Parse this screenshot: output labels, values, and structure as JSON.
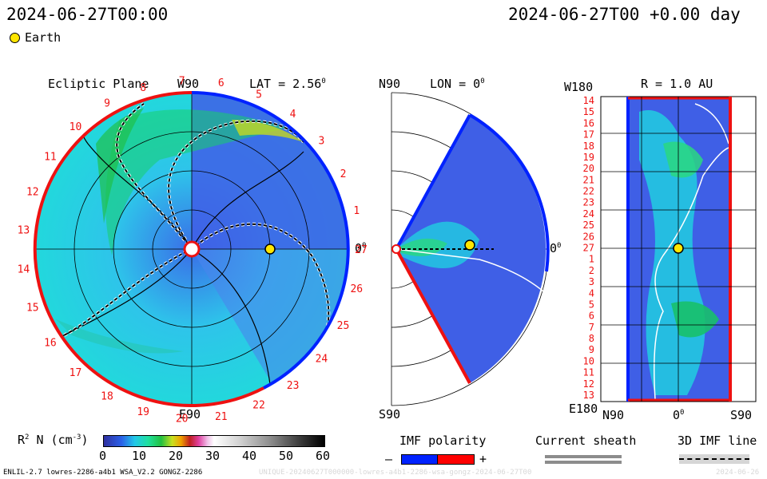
{
  "header": {
    "datetime_left": "2024-06-27T00:00",
    "datetime_right": "2024-06-27T00 +0.00 day",
    "legend_earth": "Earth"
  },
  "ecliptic": {
    "title": "Ecliptic Plane",
    "lat_label": "LAT = 2.56",
    "lat_deg": "0",
    "top_label": "W90",
    "bottom_label": "E90",
    "right_label": "0",
    "right_deg": "0",
    "carrington_rotation_labels": [
      "14",
      "15",
      "16",
      "17",
      "18",
      "19",
      "20",
      "21",
      "22",
      "23",
      "24",
      "25",
      "26",
      "27",
      "1",
      "2",
      "3",
      "4",
      "5",
      "6",
      "7",
      "8",
      "9",
      "10",
      "11",
      "12",
      "13"
    ]
  },
  "meridional": {
    "top_label": "N90",
    "lon_label": "LON = 0",
    "lon_deg": "0",
    "bottom_label": "S90",
    "right_label": "0",
    "right_deg": "0"
  },
  "radial": {
    "top_left_label": "W180",
    "title": "R = 1.0 AU",
    "bottom_left_label": "E180",
    "x_labels": [
      "N90",
      "0",
      "S90"
    ],
    "x_zero_deg": "0",
    "y_labels": [
      "14",
      "15",
      "16",
      "17",
      "18",
      "19",
      "20",
      "21",
      "22",
      "23",
      "24",
      "25",
      "26",
      "27",
      "1",
      "2",
      "3",
      "4",
      "5",
      "6",
      "7",
      "8",
      "9",
      "10",
      "11",
      "12",
      "13"
    ]
  },
  "colorbar": {
    "label": "R",
    "label_sup": "2",
    "label_rest": " N (cm",
    "label_exp": "-3",
    "label_end": ")",
    "ticks": [
      "0",
      "10",
      "20",
      "30",
      "40",
      "50",
      "60"
    ]
  },
  "legend": {
    "imf_polarity": "IMF polarity",
    "minus": "–",
    "plus": "+",
    "current_sheath": "Current sheath",
    "imf_line": "3D IMF line"
  },
  "footer": {
    "model_info": "ENLIL-2.7 lowres-2286-a4b1 WSA_V2.2 GONGZ-2286",
    "run_id": "UNIQUE-20240627T000000-lowres-a4b1-2286-wsa-gongz-2024-06-27T00",
    "run_date": "2024-06-26"
  },
  "colors": {
    "positive_polarity": "#ff0000",
    "negative_polarity": "#0022ff",
    "earth": "#ffe600"
  }
}
